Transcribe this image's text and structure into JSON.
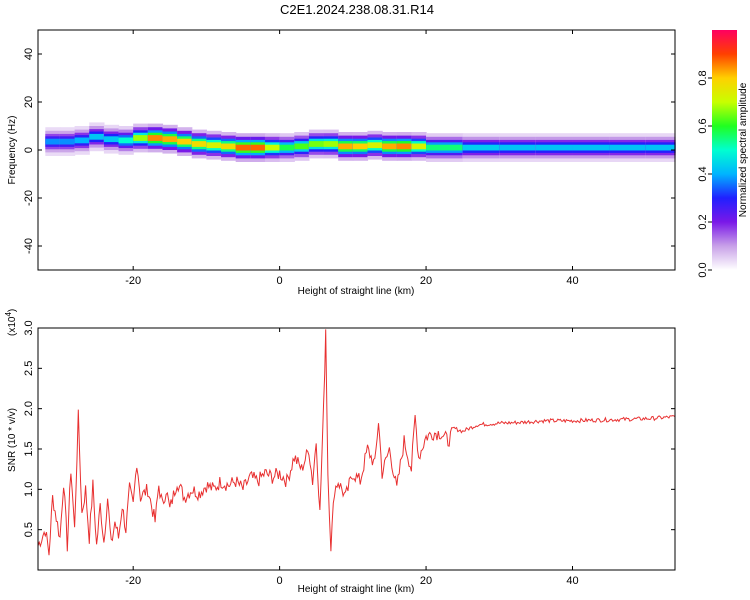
{
  "title": "C2E1.2024.238.08.31.R14",
  "chart_data": [
    {
      "type": "heatmap",
      "xlabel": "Height of straight line (km)",
      "ylabel": "Frequency (Hz)",
      "xlim": [
        -33,
        54
      ],
      "ylim": [
        -50,
        50
      ],
      "xticks": [
        -20,
        0,
        20,
        40
      ],
      "yticks": [
        -40,
        -20,
        0,
        20,
        40
      ],
      "colorbar": {
        "label": "Normalized spectral amplitude",
        "range": [
          0,
          1
        ],
        "ticks": [
          0.0,
          0.2,
          0.4,
          0.6,
          0.8
        ],
        "colors": [
          "#ffffff",
          "#c8a0e8",
          "#7a18e8",
          "#2020ff",
          "#00b4ff",
          "#00ffd0",
          "#20ff20",
          "#c8ff00",
          "#ffd000",
          "#ff4000",
          "#ff0060"
        ]
      },
      "ridge": {
        "x": [
          -32,
          -30,
          -28,
          -26,
          -24,
          -22,
          -20,
          -18,
          -16,
          -14,
          -12,
          -10,
          -8,
          -6,
          -4,
          -2,
          0,
          2,
          4,
          6,
          8,
          10,
          12,
          14,
          16,
          18,
          20,
          25,
          30,
          35,
          40,
          45,
          50,
          54
        ],
        "freq": [
          3,
          4,
          3,
          5,
          6,
          3,
          5,
          5,
          5,
          4,
          3,
          2,
          2,
          1,
          1,
          1,
          1,
          1,
          2,
          3,
          2,
          1,
          2,
          2,
          1,
          2,
          1,
          1,
          1,
          1,
          1,
          1,
          1,
          1
        ],
        "amp": [
          0.35,
          0.4,
          0.35,
          0.45,
          0.4,
          0.45,
          0.55,
          0.8,
          0.9,
          0.75,
          0.85,
          0.7,
          0.75,
          0.8,
          0.95,
          0.8,
          0.6,
          0.55,
          0.7,
          0.6,
          0.75,
          0.9,
          0.7,
          0.75,
          0.9,
          0.8,
          0.65,
          0.45,
          0.42,
          0.42,
          0.42,
          0.42,
          0.42,
          0.42
        ]
      }
    },
    {
      "type": "line",
      "xlabel": "Height of straight line (km)",
      "ylabel": "SNR (10 * v/v)",
      "yunit": "(x10",
      "yunit_exp": "4",
      "yunit_close": ")",
      "xlim": [
        -33,
        54
      ],
      "ylim": [
        0,
        3.0
      ],
      "xticks": [
        -20,
        0,
        20,
        40
      ],
      "yticks": [
        0.5,
        1.0,
        1.5,
        2.0,
        2.5,
        3.0
      ],
      "yticklabels": [
        "0.5",
        "1.0",
        "1.5",
        "2.0",
        "2.5",
        "3.0"
      ],
      "color": "#e83030",
      "series": [
        {
          "x": [
            -33,
            -32,
            -31.5,
            -31,
            -30,
            -29.5,
            -29,
            -28.5,
            -28,
            -27.5,
            -27,
            -26.5,
            -26,
            -25.5,
            -25,
            -24.5,
            -24,
            -23.5,
            -23,
            -22.5,
            -22,
            -21.5,
            -21,
            -20.5,
            -20,
            -19.5,
            -19,
            -18,
            -17,
            -16.5,
            -16,
            -15.5,
            -15,
            -14,
            -13,
            -12,
            -11,
            -10,
            -9,
            -8,
            -7,
            -6,
            -5,
            -4,
            -3,
            -2,
            -1,
            0,
            1,
            2,
            3,
            4,
            4.5,
            5,
            5.5,
            6,
            6.3,
            6.6,
            7,
            7.5,
            8,
            9,
            10,
            11,
            12,
            13,
            13.5,
            14,
            15,
            16,
            17,
            18,
            18.5,
            19,
            20,
            21,
            22,
            23,
            24,
            25,
            27,
            30,
            33,
            36,
            40,
            44,
            48,
            51,
            54
          ],
          "y": [
            0.3,
            0.5,
            0.2,
            0.9,
            0.4,
            1.1,
            0.3,
            1.25,
            0.5,
            1.9,
            0.7,
            1.0,
            0.4,
            1.05,
            0.3,
            0.8,
            0.35,
            0.9,
            0.3,
            0.6,
            0.4,
            0.8,
            0.5,
            1.0,
            0.8,
            1.35,
            0.9,
            1.0,
            0.6,
            1.05,
            0.8,
            1.0,
            0.75,
            1.1,
            0.9,
            1.0,
            0.95,
            1.05,
            1.0,
            1.1,
            1.05,
            1.1,
            1.0,
            1.15,
            1.1,
            1.2,
            1.15,
            1.2,
            1.1,
            1.4,
            1.25,
            1.5,
            1.1,
            1.6,
            0.7,
            2.0,
            3.0,
            1.2,
            0.3,
            1.0,
            1.1,
            0.9,
            1.2,
            1.1,
            1.5,
            1.3,
            1.85,
            1.2,
            1.5,
            1.0,
            1.6,
            1.25,
            1.9,
            1.4,
            1.65,
            1.7,
            1.7,
            1.6,
            1.75,
            1.72,
            1.8,
            1.82,
            1.83,
            1.85,
            1.85,
            1.86,
            1.87,
            1.88,
            1.9
          ]
        }
      ]
    }
  ]
}
